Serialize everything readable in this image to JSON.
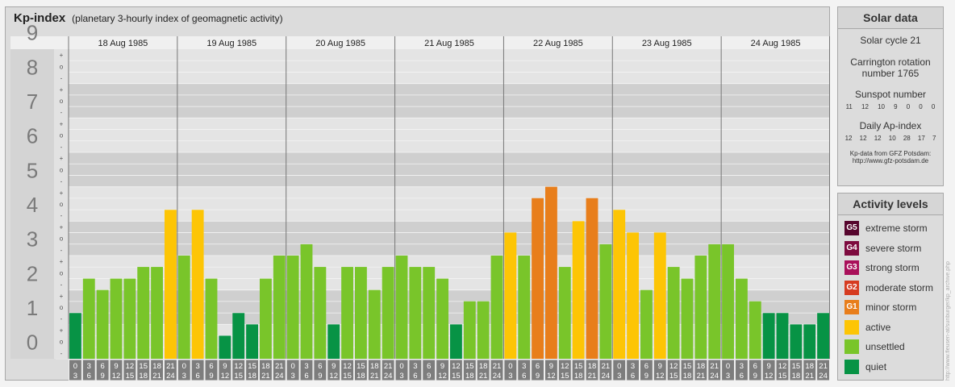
{
  "header": {
    "title": "Kp-index",
    "subtitle": "(planetary 3-hourly index of geomagnetic activity)"
  },
  "chart_data": {
    "type": "bar",
    "ylim": [
      0,
      9
    ],
    "yticks": [
      "0",
      "1",
      "2",
      "3",
      "4",
      "5",
      "6",
      "7",
      "8",
      "9"
    ],
    "minor_marks": [
      "+",
      "o",
      "-"
    ],
    "days": [
      "18 Aug 1985",
      "19 Aug 1985",
      "20 Aug 1985",
      "21 Aug 1985",
      "22 Aug 1985",
      "23 Aug 1985",
      "24 Aug 1985"
    ],
    "hour_labels": [
      [
        "0",
        "3"
      ],
      [
        "3",
        "6"
      ],
      [
        "6",
        "9"
      ],
      [
        "9",
        "12"
      ],
      [
        "12",
        "15"
      ],
      [
        "15",
        "18"
      ],
      [
        "18",
        "21"
      ],
      [
        "21",
        "24"
      ]
    ],
    "values": [
      [
        1.33,
        2.33,
        2.0,
        2.33,
        2.33,
        2.67,
        2.67,
        4.33
      ],
      [
        3.0,
        4.33,
        2.33,
        0.67,
        1.33,
        1.0,
        2.33,
        3.0
      ],
      [
        3.0,
        3.33,
        2.67,
        1.0,
        2.67,
        2.67,
        2.0,
        2.67
      ],
      [
        3.0,
        2.67,
        2.67,
        2.33,
        1.0,
        1.67,
        1.67,
        3.0
      ],
      [
        3.67,
        3.0,
        4.67,
        5.0,
        2.67,
        4.0,
        4.67,
        3.33
      ],
      [
        4.33,
        3.67,
        2.0,
        3.67,
        2.67,
        2.33,
        3.0,
        3.33
      ],
      [
        3.33,
        2.33,
        1.67,
        1.33,
        1.33,
        1.0,
        1.0,
        1.33
      ]
    ],
    "colors": {
      "quiet": "#079345",
      "unsettled": "#79c52a",
      "active": "#fdc505",
      "minor": "#e87e1b"
    }
  },
  "solar": {
    "title": "Solar data",
    "cycle": "Solar cycle 21",
    "carrington_line1": "Carrington rotation",
    "carrington_line2": "number 1765",
    "sunspot_label": "Sunspot number",
    "sunspot": [
      "11",
      "12",
      "10",
      "9",
      "0",
      "0",
      "0"
    ],
    "ap_label": "Daily Ap-index",
    "ap": [
      "12",
      "12",
      "12",
      "10",
      "28",
      "17",
      "7"
    ],
    "source1": "Kp-data from GFZ Potsdam:",
    "source2": "http://www.gfz-potsdam.de"
  },
  "levels": {
    "title": "Activity levels",
    "items": [
      {
        "badge": "G5",
        "label": "extreme storm",
        "color": "#56052d"
      },
      {
        "badge": "G4",
        "label": "severe storm",
        "color": "#7d0a3e"
      },
      {
        "badge": "G3",
        "label": "strong storm",
        "color": "#a9105a"
      },
      {
        "badge": "G2",
        "label": "moderate storm",
        "color": "#d63b20"
      },
      {
        "badge": "G1",
        "label": "minor storm",
        "color": "#e87e1b"
      },
      {
        "badge": "",
        "label": "active",
        "color": "#fdc505"
      },
      {
        "badge": "",
        "label": "unsettled",
        "color": "#79c52a"
      },
      {
        "badge": "",
        "label": "quiet",
        "color": "#079345"
      }
    ]
  },
  "credit": "http://www.fleusen-at/sunburger/kp_archive.php"
}
